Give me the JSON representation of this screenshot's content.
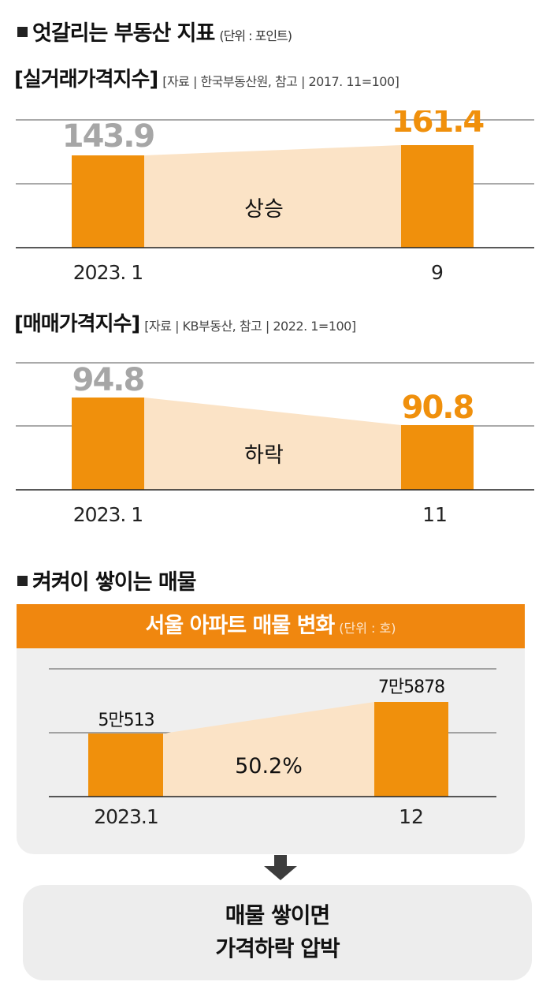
{
  "section1": {
    "title": "엇갈리는 부동산 지표",
    "unit": "(단위 : 포인트)"
  },
  "section2": {
    "title": "켜켜이 쌓이는 매물"
  },
  "box": {
    "title": "서울 아파트 매물 변화",
    "unit": "(단위 : 호)"
  },
  "result": {
    "line1": "매물 쌓이면",
    "line2": "가격하락 압박"
  },
  "colors": {
    "bar": "#f0900c",
    "label_highlight": "#f0900c",
    "label_muted": "#a6a6a6",
    "band": "#fbe3c6",
    "box_header": "#f0870f",
    "box_bg": "#efefef"
  },
  "chart_data": [
    {
      "type": "bar",
      "title": "[실거래가격지수]",
      "source": "[자료 | 한국부동산원, 참고 | 2017. 11=100]",
      "categories": [
        "2023. 1",
        "9"
      ],
      "values": [
        143.9,
        161.4
      ],
      "value_labels": [
        "143.9",
        "161.4"
      ],
      "change_label": "상승",
      "gridlines": true
    },
    {
      "type": "bar",
      "title": "[매매가격지수]",
      "source": "[자료 | KB부동산, 참고 | 2022. 1=100]",
      "categories": [
        "2023. 1",
        "11"
      ],
      "values": [
        94.8,
        90.8
      ],
      "value_labels": [
        "94.8",
        "90.8"
      ],
      "change_label": "하락",
      "gridlines": true
    },
    {
      "type": "bar",
      "title": "서울 아파트 매물 변화",
      "categories": [
        "2023.1",
        "12"
      ],
      "values": [
        50513,
        75878
      ],
      "value_labels": [
        "5만513",
        "7만5878"
      ],
      "change_label": "50.2%",
      "gridlines": true
    }
  ]
}
